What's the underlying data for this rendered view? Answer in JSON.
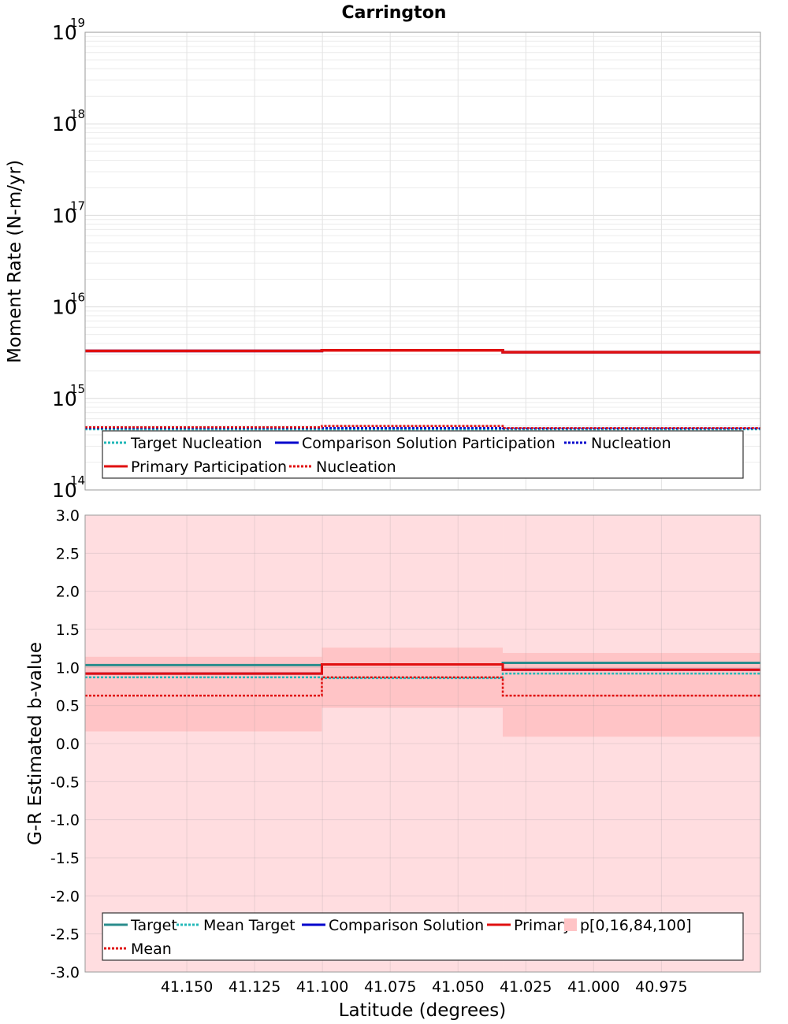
{
  "title": "Carrington",
  "colors": {
    "target": "#2a8c8c",
    "mean_target": "#22b8b8",
    "comparison": "#0000cc",
    "primary": "#e01010",
    "band_outer": "#ffdde0",
    "band_inner": "#ffc4c6"
  },
  "chart_data": [
    {
      "type": "line",
      "title": "Carrington",
      "xlabel": "",
      "ylabel": "Moment Rate (N-m/yr)",
      "yscale": "log",
      "ylim": [
        100000000000000.0,
        1e+19
      ],
      "xlim": [
        41.1875,
        40.9385
      ],
      "x_reversed": true,
      "y_tick_labels": [
        {
          "base": "10",
          "exp": "14",
          "value": 100000000000000.0
        },
        {
          "base": "10",
          "exp": "15",
          "value": 1000000000000000.0
        },
        {
          "base": "10",
          "exp": "16",
          "value": 1e+16
        },
        {
          "base": "10",
          "exp": "17",
          "value": 1e+17
        },
        {
          "base": "10",
          "exp": "18",
          "value": 1e+18
        },
        {
          "base": "10",
          "exp": "19",
          "value": 1e+19
        }
      ],
      "segments_x": [
        [
          41.1875,
          41.1002
        ],
        [
          41.1002,
          41.0335
        ],
        [
          41.0335,
          40.9385
        ]
      ],
      "series": [
        {
          "name": "Target Nucleation",
          "style": "dotted",
          "color_key": "mean_target",
          "values": [
            460000000000000.0,
            460000000000000.0,
            460000000000000.0
          ]
        },
        {
          "name": "Comparison Solution Participation",
          "style": "solid",
          "color_key": "comparison",
          "values": [
            3300000000000000.0,
            3350000000000000.0,
            3200000000000000.0
          ]
        },
        {
          "name": "Nucleation",
          "style": "dotted",
          "color_key": "comparison",
          "values": [
            475000000000000.0,
            475000000000000.0,
            470000000000000.0
          ]
        },
        {
          "name": "Primary Participation",
          "style": "solid",
          "color_key": "primary",
          "values": [
            3300000000000000.0,
            3350000000000000.0,
            3200000000000000.0
          ]
        },
        {
          "name": "Nucleation",
          "style": "dotted",
          "color_key": "primary",
          "values": [
            485000000000000.0,
            500000000000000.0,
            475000000000000.0
          ]
        }
      ],
      "legend": {
        "placement": "bottom",
        "rows": [
          [
            {
              "label": "Target Nucleation",
              "style": "dotted",
              "color_key": "mean_target"
            },
            {
              "label": "Comparison Solution Participation",
              "style": "solid",
              "color_key": "comparison"
            },
            {
              "label": "Nucleation",
              "style": "dotted",
              "color_key": "comparison"
            }
          ],
          [
            {
              "label": "Primary Participation",
              "style": "solid",
              "color_key": "primary"
            },
            {
              "label": "Nucleation",
              "style": "dotted",
              "color_key": "primary"
            }
          ]
        ]
      },
      "grid": true
    },
    {
      "type": "line",
      "title": "",
      "xlabel": "Latitude (degrees)",
      "ylabel": "G-R Estimated b-value",
      "ylim": [
        -3.0,
        3.0
      ],
      "xlim": [
        41.1875,
        40.9385
      ],
      "x_reversed": true,
      "y_ticks": [
        "-3.0",
        "-2.5",
        "-2.0",
        "-1.5",
        "-1.0",
        "-0.5",
        "0.0",
        "0.5",
        "1.0",
        "1.5",
        "2.0",
        "2.5",
        "3.0"
      ],
      "x_ticks": [
        "41.150",
        "41.125",
        "41.100",
        "41.075",
        "41.050",
        "41.025",
        "41.000",
        "40.975"
      ],
      "segments_x": [
        [
          41.1875,
          41.1002
        ],
        [
          41.1002,
          41.0335
        ],
        [
          41.0335,
          40.9385
        ]
      ],
      "bands": {
        "name": "p[0,16,84,100]",
        "outer": [
          [
            -3.0,
            3.0
          ],
          [
            -3.0,
            3.0
          ],
          [
            -3.0,
            3.0
          ]
        ],
        "inner": [
          [
            0.16,
            1.14
          ],
          [
            0.47,
            1.26
          ],
          [
            0.09,
            1.19
          ]
        ]
      },
      "series": [
        {
          "name": "Target",
          "style": "solid",
          "color_key": "target",
          "values": [
            1.03,
            1.04,
            1.06
          ]
        },
        {
          "name": "Mean Target",
          "style": "dotted",
          "color_key": "mean_target",
          "values": [
            0.87,
            0.86,
            0.92
          ]
        },
        {
          "name": "Comparison Solution",
          "style": "solid",
          "color_key": "comparison",
          "values": [
            0.92,
            1.04,
            0.97
          ]
        },
        {
          "name": "Primary",
          "style": "solid",
          "color_key": "primary",
          "values": [
            0.92,
            1.04,
            0.97
          ]
        },
        {
          "name": "Mean",
          "style": "dotted",
          "color_key": "primary",
          "values": [
            0.63,
            0.87,
            0.63
          ]
        }
      ],
      "legend": {
        "placement": "bottom",
        "rows": [
          [
            {
              "label": "Target",
              "style": "solid",
              "color_key": "target"
            },
            {
              "label": "Mean Target",
              "style": "dotted",
              "color_key": "mean_target"
            },
            {
              "label": "Comparison Solution",
              "style": "solid",
              "color_key": "comparison"
            },
            {
              "label": "Primary",
              "style": "solid",
              "color_key": "primary"
            },
            {
              "label": "p[0,16,84,100]",
              "style": "patch",
              "color_key": "band_inner"
            }
          ],
          [
            {
              "label": "Mean",
              "style": "dotted",
              "color_key": "primary"
            }
          ]
        ]
      },
      "grid": true
    }
  ]
}
